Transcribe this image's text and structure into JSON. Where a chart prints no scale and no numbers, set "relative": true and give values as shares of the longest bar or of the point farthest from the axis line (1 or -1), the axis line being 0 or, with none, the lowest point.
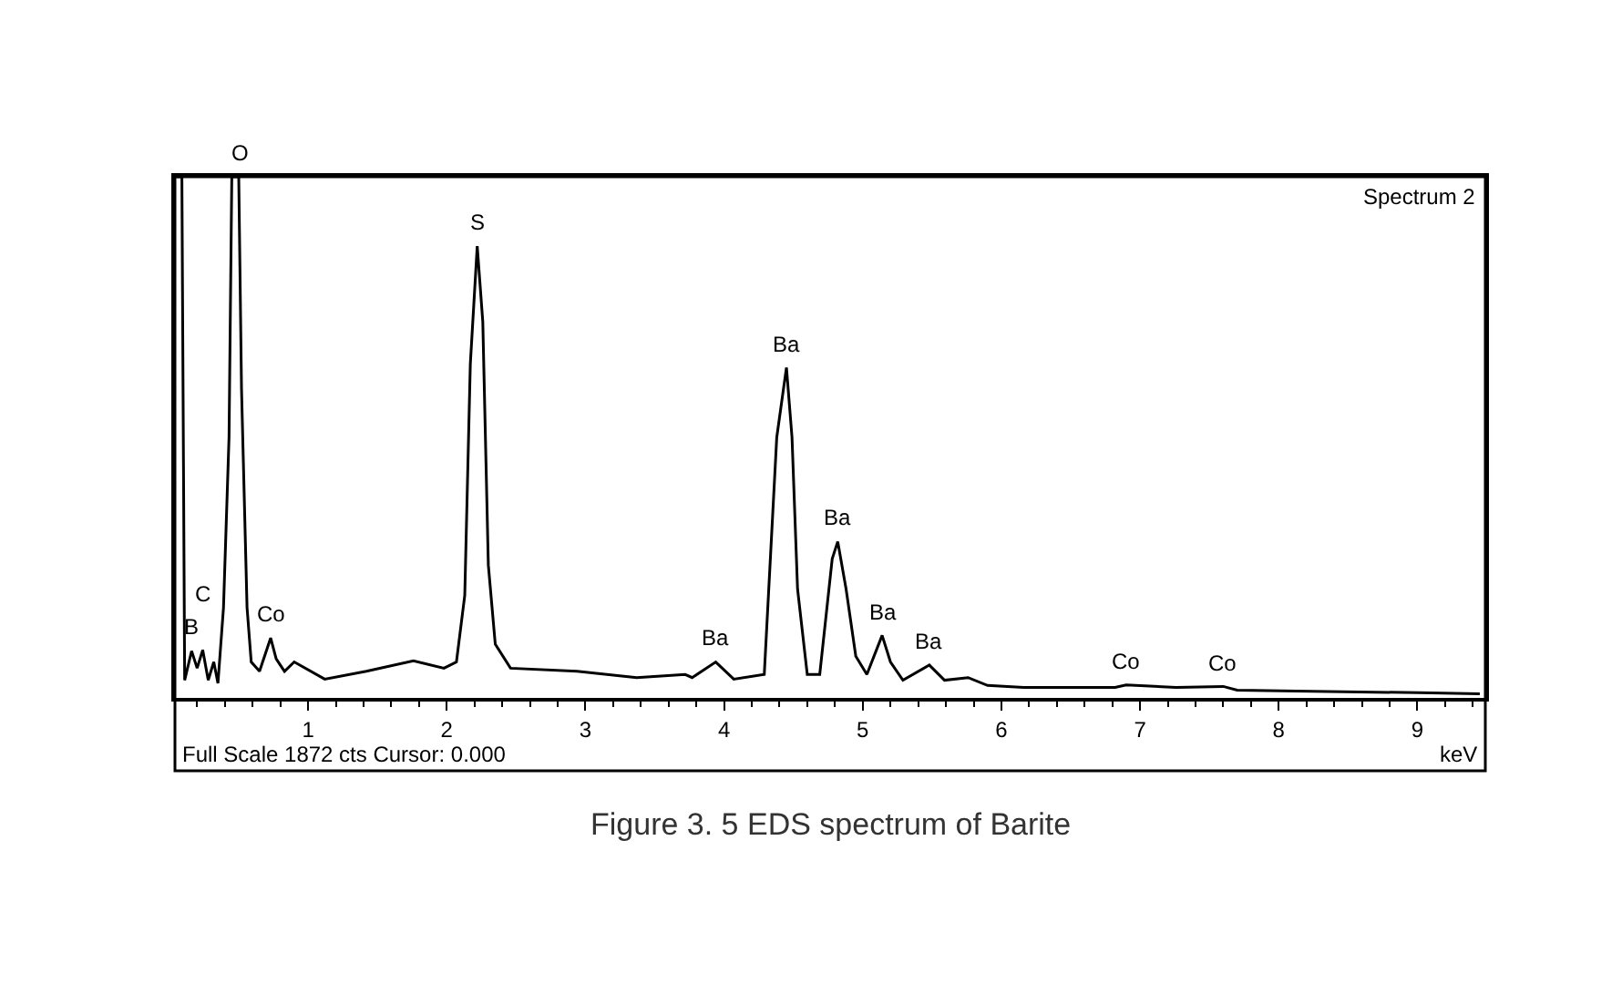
{
  "chart_data": {
    "type": "line",
    "relative": true,
    "xlabel": "keV",
    "tick_labels": "x",
    "marker": "none",
    "line_style": "solid",
    "xlim": [
      0.04,
      9.49
    ],
    "xticks": [
      1,
      2,
      3,
      4,
      5,
      6,
      7,
      8,
      9
    ],
    "series": [
      {
        "color": "#000000",
        "x": [
          0.05,
          0.09,
          0.11,
          0.16,
          0.2,
          0.24,
          0.28,
          0.32,
          0.35,
          0.39,
          0.43,
          0.45,
          0.5,
          0.52,
          0.56,
          0.59,
          0.65,
          0.73,
          0.77,
          0.83,
          0.9,
          1.12,
          1.42,
          1.76,
          1.98,
          2.07,
          2.13,
          2.17,
          2.22,
          2.26,
          2.3,
          2.35,
          2.46,
          2.94,
          3.37,
          3.72,
          3.77,
          3.94,
          4.07,
          4.29,
          4.38,
          4.45,
          4.49,
          4.53,
          4.6,
          4.69,
          4.78,
          4.82,
          4.88,
          4.95,
          5.03,
          5.14,
          5.2,
          5.29,
          5.48,
          5.59,
          5.76,
          5.9,
          6.16,
          6.82,
          6.9,
          7.26,
          7.6,
          7.7,
          8.13,
          9.01,
          9.45
        ],
        "values": [
          1,
          1,
          0.034,
          0.09,
          0.057,
          0.092,
          0.034,
          0.069,
          0.028,
          0.173,
          0.5,
          1,
          1,
          0.593,
          0.173,
          0.069,
          0.051,
          0.115,
          0.075,
          0.051,
          0.069,
          0.036,
          0.051,
          0.071,
          0.057,
          0.069,
          0.197,
          0.64,
          0.867,
          0.722,
          0.255,
          0.103,
          0.057,
          0.051,
          0.039,
          0.045,
          0.039,
          0.069,
          0.036,
          0.045,
          0.5,
          0.634,
          0.5,
          0.209,
          0.045,
          0.045,
          0.267,
          0.3,
          0.209,
          0.08,
          0.045,
          0.12,
          0.069,
          0.034,
          0.063,
          0.034,
          0.039,
          0.024,
          0.02,
          0.02,
          0.025,
          0.02,
          0.022,
          0.015,
          0.013,
          0.01,
          0.008
        ]
      }
    ],
    "annotations": [
      {
        "text": "O",
        "x": 0.5,
        "y": 1
      },
      {
        "text": "B",
        "x": 0.16,
        "y": 0.09
      },
      {
        "text": "C",
        "x": 0.24,
        "y": 0.092
      },
      {
        "text": "Co",
        "x": 0.73,
        "y": 0.115
      },
      {
        "text": "S",
        "x": 2.22,
        "y": 0.867
      },
      {
        "text": "Ba",
        "x": 3.94,
        "y": 0.069
      },
      {
        "text": "Ba",
        "x": 4.45,
        "y": 0.634
      },
      {
        "text": "Ba",
        "x": 4.82,
        "y": 0.3
      },
      {
        "text": "Ba",
        "x": 5.14,
        "y": 0.12
      },
      {
        "text": "Ba",
        "x": 5.48,
        "y": 0.063
      },
      {
        "text": "Co",
        "x": 6.9,
        "y": 0.025
      },
      {
        "text": "Co",
        "x": 7.6,
        "y": 0.02
      },
      "Spectrum 2",
      "Full Scale 1872 cts Cursor: 0.000",
      "Figure 3. 5 EDS spectrum of Barite"
    ]
  }
}
